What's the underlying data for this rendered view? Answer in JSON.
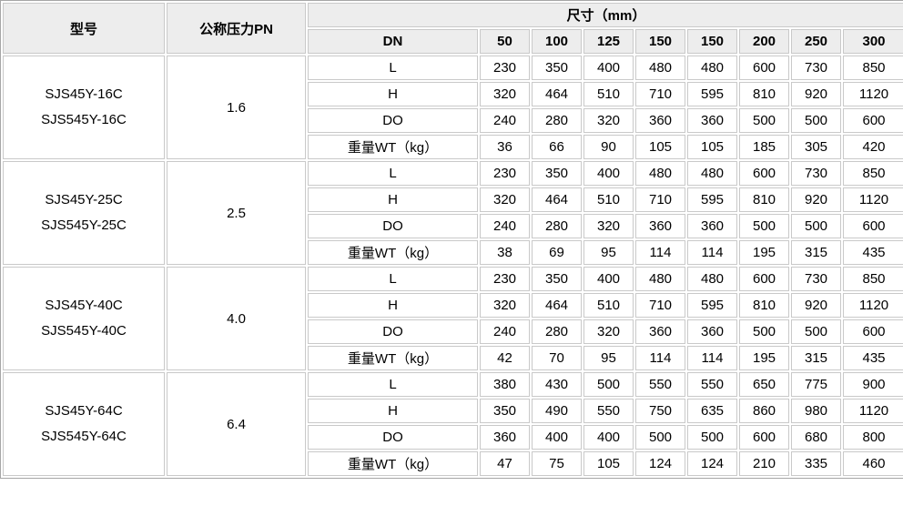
{
  "colors": {
    "header_bg": "#ededed",
    "cell_border": "#c9c9c9",
    "outer_border": "#a6a6a6",
    "text": "#000000",
    "cell_bg": "#ffffff"
  },
  "table": {
    "col_headers": {
      "model": "型号",
      "pressure": "公称压力PN",
      "size": "尺寸（mm）",
      "dn_label": "DN",
      "dn_sizes": [
        "50",
        "100",
        "125",
        "150",
        "150",
        "200",
        "250",
        "300"
      ]
    },
    "row_labels": [
      "L",
      "H",
      "DO",
      "重量WT（kg）"
    ],
    "groups": [
      {
        "model_lines": [
          "SJS45Y-16C",
          "SJS545Y-16C"
        ],
        "pn": "1.6",
        "rows": [
          [
            "230",
            "350",
            "400",
            "480",
            "480",
            "600",
            "730",
            "850"
          ],
          [
            "320",
            "464",
            "510",
            "710",
            "595",
            "810",
            "920",
            "1120"
          ],
          [
            "240",
            "280",
            "320",
            "360",
            "360",
            "500",
            "500",
            "600"
          ],
          [
            "36",
            "66",
            "90",
            "105",
            "105",
            "185",
            "305",
            "420"
          ]
        ]
      },
      {
        "model_lines": [
          "SJS45Y-25C",
          "SJS545Y-25C"
        ],
        "pn": "2.5",
        "rows": [
          [
            "230",
            "350",
            "400",
            "480",
            "480",
            "600",
            "730",
            "850"
          ],
          [
            "320",
            "464",
            "510",
            "710",
            "595",
            "810",
            "920",
            "1120"
          ],
          [
            "240",
            "280",
            "320",
            "360",
            "360",
            "500",
            "500",
            "600"
          ],
          [
            "38",
            "69",
            "95",
            "114",
            "114",
            "195",
            "315",
            "435"
          ]
        ]
      },
      {
        "model_lines": [
          "SJS45Y-40C",
          "SJS545Y-40C"
        ],
        "pn": "4.0",
        "rows": [
          [
            "230",
            "350",
            "400",
            "480",
            "480",
            "600",
            "730",
            "850"
          ],
          [
            "320",
            "464",
            "510",
            "710",
            "595",
            "810",
            "920",
            "1120"
          ],
          [
            "240",
            "280",
            "320",
            "360",
            "360",
            "500",
            "500",
            "600"
          ],
          [
            "42",
            "70",
            "95",
            "114",
            "114",
            "195",
            "315",
            "435"
          ]
        ]
      },
      {
        "model_lines": [
          "SJS45Y-64C",
          "SJS545Y-64C"
        ],
        "pn": "6.4",
        "rows": [
          [
            "380",
            "430",
            "500",
            "550",
            "550",
            "650",
            "775",
            "900"
          ],
          [
            "350",
            "490",
            "550",
            "750",
            "635",
            "860",
            "980",
            "1120"
          ],
          [
            "360",
            "400",
            "400",
            "500",
            "500",
            "600",
            "680",
            "800"
          ],
          [
            "47",
            "75",
            "105",
            "124",
            "124",
            "210",
            "335",
            "460"
          ]
        ]
      }
    ]
  }
}
